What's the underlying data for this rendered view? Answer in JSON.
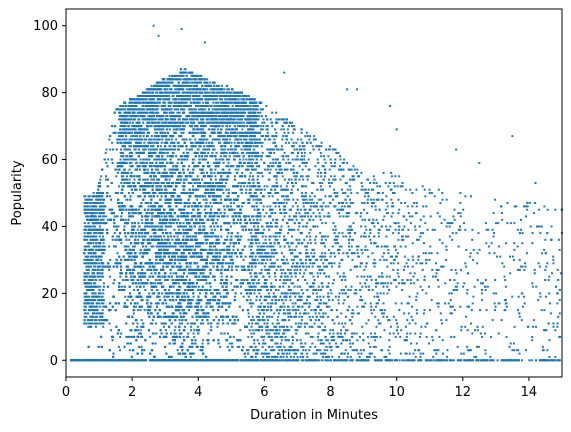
{
  "chart_data": {
    "type": "scatter",
    "xlabel": "Duration in Minutes",
    "ylabel": "Popularity",
    "xlim": [
      0,
      15
    ],
    "ylim": [
      -5,
      105
    ],
    "xticks": [
      0,
      2,
      4,
      6,
      8,
      10,
      12,
      14
    ],
    "yticks": [
      0,
      20,
      40,
      60,
      80,
      100
    ],
    "grid": false,
    "marker_color": "#1f77b4",
    "distribution": {
      "description_points": [
        {
          "x": 2.65,
          "y": 100
        },
        {
          "x": 3.5,
          "y": 99
        },
        {
          "x": 4.2,
          "y": 95
        },
        {
          "x": 2.8,
          "y": 97
        },
        {
          "x": 6.6,
          "y": 86
        },
        {
          "x": 8.5,
          "y": 81
        },
        {
          "x": 8.8,
          "y": 81
        },
        {
          "x": 9.8,
          "y": 76
        },
        {
          "x": 10.0,
          "y": 69
        },
        {
          "x": 11.8,
          "y": 63
        },
        {
          "x": 12.5,
          "y": 59
        },
        {
          "x": 13.5,
          "y": 67
        },
        {
          "x": 14.2,
          "y": 53
        },
        {
          "x": 14.8,
          "y": 45
        },
        {
          "x": 15.0,
          "y": 45
        },
        {
          "x": 12.7,
          "y": 24
        },
        {
          "x": 13.8,
          "y": 20
        },
        {
          "x": 14.6,
          "y": 11
        },
        {
          "x": 14.1,
          "y": 7
        },
        {
          "x": 13.5,
          "y": 3
        },
        {
          "x": 0.2,
          "y": 0
        },
        {
          "x": 14.5,
          "y": 0
        }
      ]
    }
  }
}
